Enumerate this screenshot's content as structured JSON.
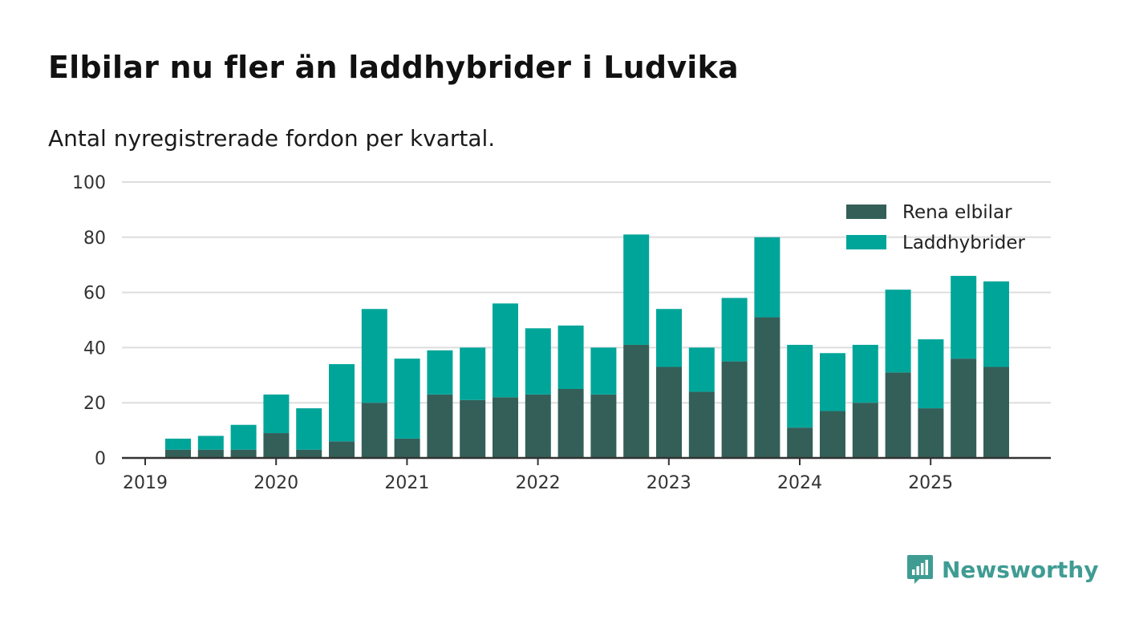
{
  "title": "Elbilar nu fler än laddhybrider i Ludvika",
  "subtitle": "Antal nyregistrerade fordon per kvartal.",
  "brand": {
    "name": "Newsworthy",
    "icon": "bar-chart-logo-icon"
  },
  "colors": {
    "elbilar": "#335f58",
    "laddhybrider": "#00a59a",
    "grid": "#dddddd",
    "axis": "#333333",
    "brand": "#3f9c93"
  },
  "chart_data": {
    "type": "bar",
    "stacked": true,
    "title": "Elbilar nu fler än laddhybrider i Ludvika",
    "subtitle": "Antal nyregistrerade fordon per kvartal.",
    "xlabel": "",
    "ylabel": "",
    "ylim": [
      0,
      100
    ],
    "yticks": [
      "0",
      "20",
      "40",
      "60",
      "80",
      "100"
    ],
    "grid": true,
    "legend_position": "top-right",
    "year_ticks": [
      "2019",
      "2020",
      "2021",
      "2022",
      "2023",
      "2024",
      "2025"
    ],
    "categories": [
      "2019 Q2",
      "2019 Q3",
      "2019 Q4",
      "2020 Q1",
      "2020 Q2",
      "2020 Q3",
      "2020 Q4",
      "2021 Q1",
      "2021 Q2",
      "2021 Q3",
      "2021 Q4",
      "2022 Q1",
      "2022 Q2",
      "2022 Q3",
      "2022 Q4",
      "2023 Q1",
      "2023 Q2",
      "2023 Q3",
      "2023 Q4",
      "2024 Q1",
      "2024 Q2",
      "2024 Q3",
      "2024 Q4",
      "2025 Q1",
      "2025 Q2",
      "2025 Q3"
    ],
    "series": [
      {
        "name": "Rena elbilar",
        "values": [
          3,
          3,
          3,
          9,
          3,
          6,
          20,
          7,
          23,
          21,
          22,
          23,
          25,
          23,
          41,
          33,
          24,
          35,
          51,
          11,
          17,
          20,
          31,
          18,
          36,
          33
        ]
      },
      {
        "name": "Laddhybrider",
        "values": [
          4,
          5,
          9,
          14,
          15,
          28,
          34,
          29,
          16,
          19,
          34,
          24,
          23,
          17,
          40,
          21,
          16,
          23,
          29,
          30,
          21,
          21,
          30,
          25,
          30,
          31
        ]
      }
    ]
  }
}
